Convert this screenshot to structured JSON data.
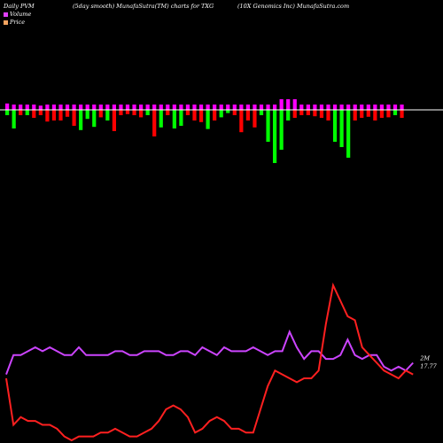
{
  "header": {
    "left": "Daily PVM",
    "title": "(5day smooth) MunafaSutra(TM) charts for TXG",
    "right": "(10X  Genomics Inc) MunafaSutra.com"
  },
  "colors": {
    "volume": "#e040fb",
    "price": "#f4a460",
    "up": "#00ff00",
    "down": "#ff0000",
    "neutral": "#ff00ff",
    "pvm_line": "#cc44ff",
    "price_line": "#ff2020",
    "baseline": "#ffffff"
  },
  "chart_data": {
    "type": "bar+line",
    "legend": [
      {
        "label": "Volume",
        "color": "#e040fb"
      },
      {
        "label": "Price",
        "color": "#f4a460"
      }
    ],
    "labels": {
      "pvm_last": "2M",
      "price_last": "17.77"
    },
    "volume": {
      "up": [
        1.2,
        1.0,
        1.0,
        1.0,
        1.0,
        0.8,
        1.0,
        1.0,
        1.0,
        1.0,
        1.0,
        1.0,
        1.0,
        1.0,
        1.0,
        1.0,
        1.0,
        1.0,
        1.0,
        1.0,
        1.0,
        1.0,
        1.0,
        1.0,
        1.0,
        1.0,
        1.0,
        1.0,
        1.0,
        1.0,
        1.0,
        1.0,
        1.0,
        1.0,
        1.0,
        1.0,
        1.0,
        1.0,
        1.0,
        1.0,
        1.0,
        2.0,
        2.0,
        2.0,
        1.0,
        1.0,
        1.0,
        1.0,
        1.0,
        1.0,
        1.0,
        1.0,
        1.0,
        1.0,
        1.0,
        1.0,
        1.0,
        1.0,
        1.0,
        1.0
      ],
      "down": [
        -1.0,
        -3.5,
        -1.0,
        -1.0,
        -1.5,
        -1.0,
        -2.2,
        -2.0,
        -2.0,
        -1.3,
        -3.0,
        -3.8,
        -1.7,
        -3.2,
        -1.4,
        -2.0,
        -4.0,
        -1.0,
        -0.8,
        -1.0,
        -1.4,
        -1.0,
        -5.0,
        -3.3,
        -1.0,
        -3.5,
        -3.0,
        -1.0,
        -2.0,
        -2.3,
        -3.6,
        -2.0,
        -1.4,
        -0.6,
        -1.0,
        -4.2,
        -2.0,
        -3.3,
        -1.0,
        -6.0,
        -10.0,
        -7.5,
        -2.0,
        -1.5,
        -1.0,
        -1.0,
        -1.2,
        -1.5,
        -2.0,
        -6.0,
        -7.0,
        -9.0,
        -2.0,
        -1.5,
        -1.3,
        -2.0,
        -1.5,
        -1.4,
        -1.0,
        -1.5
      ],
      "down_color": [
        "g",
        "g",
        "r",
        "g",
        "r",
        "r",
        "r",
        "r",
        "r",
        "r",
        "r",
        "g",
        "g",
        "g",
        "r",
        "g",
        "r",
        "r",
        "r",
        "r",
        "r",
        "g",
        "r",
        "g",
        "r",
        "g",
        "g",
        "r",
        "r",
        "r",
        "g",
        "r",
        "g",
        "g",
        "r",
        "r",
        "r",
        "r",
        "g",
        "g",
        "g",
        "g",
        "g",
        "r",
        "r",
        "r",
        "r",
        "r",
        "r",
        "g",
        "g",
        "g",
        "r",
        "r",
        "r",
        "r",
        "r",
        "r",
        "g",
        "r"
      ]
    },
    "pvm": [
      17,
      22,
      22,
      23,
      24,
      23,
      24,
      23,
      22,
      22,
      24,
      22,
      22,
      22,
      22,
      23,
      23,
      22,
      22,
      23,
      23,
      23,
      22,
      22,
      23,
      23,
      22,
      24,
      23,
      22,
      24,
      23,
      23,
      23,
      24,
      23,
      22,
      23,
      23,
      28,
      24,
      21,
      23,
      23,
      21,
      21,
      22,
      26,
      22,
      21,
      22,
      22,
      19,
      18,
      19,
      18,
      20
    ],
    "price": [
      16,
      4,
      6,
      5,
      5,
      4,
      4,
      3,
      1,
      0,
      1,
      1,
      1,
      2,
      2,
      3,
      2,
      1,
      1,
      2,
      3,
      5,
      8,
      9,
      8,
      6,
      2,
      3,
      5,
      6,
      5,
      3,
      3,
      2,
      2,
      8,
      14,
      18,
      17,
      16,
      15,
      16,
      16,
      18,
      30,
      40,
      36,
      32,
      31,
      24,
      22,
      20,
      18,
      17,
      16,
      18,
      17
    ]
  }
}
